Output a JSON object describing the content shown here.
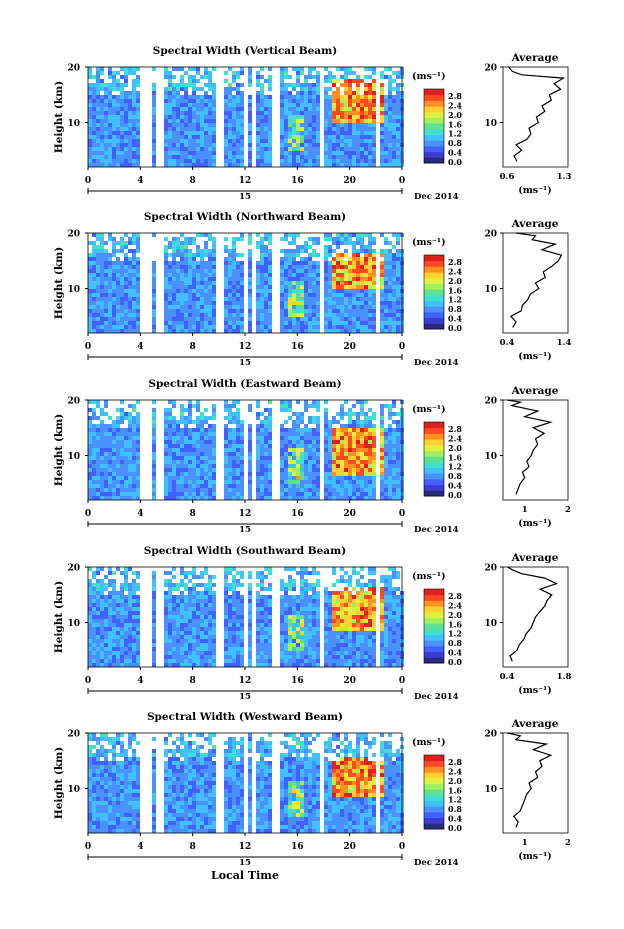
{
  "colors": {
    "scale": [
      "#2a2a7a",
      "#3b3bd0",
      "#4060ff",
      "#4a90ff",
      "#40c0ff",
      "#40e0d0",
      "#60e090",
      "#a0f060",
      "#e0f040",
      "#ffd030",
      "#ff9020",
      "#ff4a20",
      "#e02020"
    ],
    "frame": "#000000",
    "blank": "#ffffff"
  },
  "shared": {
    "xlabel": "Local Time",
    "date": "Dec 2014",
    "day": "15",
    "ylabel": "Height (km)",
    "colorbar_unit": "(ms⁻¹)",
    "colorbar_ticks": [
      "0.0",
      "0.4",
      "0.8",
      "1.2",
      "1.6",
      "2.0",
      "2.4",
      "2.8"
    ],
    "avg_title": "Average",
    "avg_unit": "(ms⁻¹)",
    "y_ticks": [
      "20",
      "10"
    ],
    "x_ticks": [
      "0",
      "4",
      "8",
      "12",
      "16",
      "20",
      "0"
    ]
  },
  "chart_data": [
    {
      "type": "heatmap",
      "title": "Spectral Width (Vertical Beam)",
      "xlabel": "Local Time",
      "ylabel": "Height (km)",
      "x_range_hours": [
        0,
        24
      ],
      "ylim_km": [
        2,
        20
      ],
      "colorbar_range": [
        0.0,
        3.0
      ],
      "high_width_region": {
        "time_hours": [
          18.5,
          22.5
        ],
        "height_km": [
          10,
          18
        ]
      },
      "average_profile": {
        "xlim": [
          0.6,
          1.3
        ],
        "xticks": [
          "0.6",
          "1.3"
        ],
        "points": [
          [
            0.75,
            3
          ],
          [
            0.72,
            4
          ],
          [
            0.8,
            5
          ],
          [
            0.74,
            6
          ],
          [
            0.86,
            7
          ],
          [
            0.9,
            8
          ],
          [
            0.88,
            9
          ],
          [
            0.98,
            10
          ],
          [
            0.96,
            11
          ],
          [
            1.05,
            12
          ],
          [
            1.02,
            13
          ],
          [
            1.12,
            14
          ],
          [
            1.1,
            15
          ],
          [
            1.22,
            16
          ],
          [
            1.15,
            17
          ],
          [
            1.25,
            18
          ],
          [
            0.8,
            18.6
          ],
          [
            0.7,
            19.2
          ],
          [
            0.66,
            20
          ]
        ]
      }
    },
    {
      "type": "heatmap",
      "title": "Spectral Width (Northward Beam)",
      "xlabel": "Local Time",
      "ylabel": "Height (km)",
      "x_range_hours": [
        0,
        24
      ],
      "ylim_km": [
        2,
        20
      ],
      "colorbar_range": [
        0.0,
        3.0
      ],
      "high_width_region": {
        "time_hours": [
          18.5,
          22.5
        ],
        "height_km": [
          10,
          17
        ]
      },
      "average_profile": {
        "xlim": [
          0.4,
          1.4
        ],
        "xticks": [
          "0.4",
          "1.4"
        ],
        "points": [
          [
            0.55,
            3
          ],
          [
            0.6,
            4
          ],
          [
            0.52,
            5
          ],
          [
            0.68,
            6
          ],
          [
            0.7,
            7
          ],
          [
            0.78,
            8
          ],
          [
            0.82,
            9
          ],
          [
            0.95,
            10
          ],
          [
            0.9,
            11
          ],
          [
            1.05,
            12
          ],
          [
            1.02,
            13
          ],
          [
            1.15,
            14
          ],
          [
            1.25,
            15
          ],
          [
            1.3,
            16
          ],
          [
            1.0,
            17
          ],
          [
            1.2,
            18
          ],
          [
            0.85,
            18.8
          ],
          [
            0.9,
            19.5
          ],
          [
            0.6,
            20
          ]
        ]
      }
    },
    {
      "type": "heatmap",
      "title": "Spectral Width (Eastward Beam)",
      "xlabel": "Local Time",
      "ylabel": "Height (km)",
      "x_range_hours": [
        0,
        24
      ],
      "ylim_km": [
        2,
        20
      ],
      "colorbar_range": [
        0.0,
        3.0
      ],
      "high_width_region": {
        "time_hours": [
          18.5,
          22.5
        ],
        "height_km": [
          7,
          15
        ]
      },
      "average_profile": {
        "xlim": [
          0.5,
          2.0
        ],
        "xticks": [
          "1",
          "2"
        ],
        "points": [
          [
            0.8,
            3
          ],
          [
            0.85,
            4
          ],
          [
            0.9,
            5
          ],
          [
            1.0,
            6
          ],
          [
            0.95,
            7
          ],
          [
            1.1,
            8
          ],
          [
            1.05,
            9
          ],
          [
            1.15,
            10
          ],
          [
            1.2,
            11
          ],
          [
            1.3,
            12
          ],
          [
            1.25,
            13
          ],
          [
            1.45,
            14
          ],
          [
            1.2,
            15
          ],
          [
            1.6,
            16
          ],
          [
            1.0,
            17
          ],
          [
            1.3,
            18
          ],
          [
            0.7,
            19
          ],
          [
            0.9,
            19.6
          ],
          [
            0.6,
            20
          ]
        ]
      }
    },
    {
      "type": "heatmap",
      "title": "Spectral Width (Southward Beam)",
      "xlabel": "Local Time",
      "ylabel": "Height (km)",
      "x_range_hours": [
        0,
        24
      ],
      "ylim_km": [
        2,
        20
      ],
      "colorbar_range": [
        0.0,
        3.0
      ],
      "high_width_region": {
        "time_hours": [
          18.5,
          22.5
        ],
        "height_km": [
          9,
          17
        ]
      },
      "average_profile": {
        "xlim": [
          0.4,
          1.8
        ],
        "xticks": [
          "0.4",
          "1.8"
        ],
        "points": [
          [
            0.6,
            3
          ],
          [
            0.55,
            4
          ],
          [
            0.7,
            5
          ],
          [
            0.75,
            6
          ],
          [
            0.85,
            7
          ],
          [
            0.9,
            8
          ],
          [
            1.0,
            9
          ],
          [
            1.05,
            10
          ],
          [
            1.1,
            11
          ],
          [
            1.2,
            12
          ],
          [
            1.3,
            13
          ],
          [
            1.35,
            14
          ],
          [
            1.45,
            15
          ],
          [
            1.2,
            16
          ],
          [
            1.55,
            17
          ],
          [
            1.3,
            18
          ],
          [
            0.8,
            18.8
          ],
          [
            0.6,
            19.5
          ],
          [
            0.5,
            20
          ]
        ]
      }
    },
    {
      "type": "heatmap",
      "title": "Spectral Width (Westward Beam)",
      "xlabel": "Local Time",
      "ylabel": "Height (km)",
      "x_range_hours": [
        0,
        24
      ],
      "ylim_km": [
        2,
        20
      ],
      "colorbar_range": [
        0.0,
        3.0
      ],
      "high_width_region": {
        "time_hours": [
          18.5,
          22.5
        ],
        "height_km": [
          9,
          16
        ]
      },
      "average_profile": {
        "xlim": [
          0.5,
          2.0
        ],
        "xticks": [
          "1",
          "2"
        ],
        "points": [
          [
            0.8,
            3
          ],
          [
            0.85,
            4
          ],
          [
            0.75,
            5
          ],
          [
            0.9,
            6
          ],
          [
            0.95,
            7
          ],
          [
            1.0,
            8
          ],
          [
            1.05,
            9
          ],
          [
            1.15,
            10
          ],
          [
            1.1,
            11
          ],
          [
            1.3,
            12
          ],
          [
            1.25,
            13
          ],
          [
            1.4,
            14
          ],
          [
            1.35,
            15
          ],
          [
            1.6,
            16
          ],
          [
            1.2,
            17
          ],
          [
            1.5,
            18
          ],
          [
            0.8,
            18.8
          ],
          [
            0.9,
            19.5
          ],
          [
            0.6,
            20
          ]
        ]
      }
    }
  ]
}
